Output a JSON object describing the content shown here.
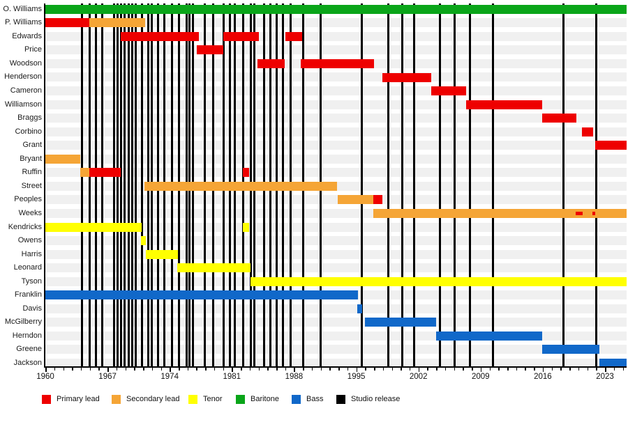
{
  "chart_data": {
    "type": "timeline",
    "description": "Band membership timeline with vocal roles and studio release markers",
    "x_axis": {
      "min": 1960,
      "max": 2025.45,
      "major_ticks": [
        1960,
        1967,
        1974,
        1981,
        1988,
        1995,
        2002,
        2009,
        2016,
        2023
      ],
      "minor_tick_interval": 1,
      "grid": false
    },
    "legend_position": "bottom",
    "legend": [
      {
        "key": "primary_lead",
        "label": "Primary lead",
        "color": "#ee0000"
      },
      {
        "key": "secondary_lead",
        "label": "Secondary lead",
        "color": "#f5a536"
      },
      {
        "key": "tenor",
        "label": "Tenor",
        "color": "#ffff00"
      },
      {
        "key": "baritone",
        "label": "Baritone",
        "color": "#0aa519"
      },
      {
        "key": "bass",
        "label": "Bass",
        "color": "#1068c9"
      },
      {
        "key": "studio_release",
        "label": "Studio release",
        "color": "#000000"
      }
    ],
    "studio_releases": [
      1964.15,
      1964.95,
      1965.7,
      1966.4,
      1967.7,
      1968.1,
      1968.5,
      1968.95,
      1969.35,
      1969.75,
      1970.2,
      1970.9,
      1971.6,
      1972.0,
      1972.7,
      1973.4,
      1974.25,
      1975.05,
      1975.9,
      1976.25,
      1976.6,
      1977.95,
      1978.85,
      1980.1,
      1980.75,
      1981.35,
      1982.3,
      1983.1,
      1983.55,
      1984.6,
      1985.3,
      1986.05,
      1986.75,
      1987.6,
      1989.0,
      1991.0,
      1995.65,
      1998.6,
      2000.2,
      2001.5,
      2004.45,
      2006.1,
      2007.8,
      2010.35,
      2018.35,
      2022.0
    ],
    "members": [
      {
        "name": "O. Williams",
        "segments": [
          {
            "role": "baritone",
            "start": 1960,
            "end": 2025.45
          }
        ]
      },
      {
        "name": "P. Williams",
        "segments": [
          {
            "role": "primary_lead",
            "start": 1960,
            "end": 1964.95
          },
          {
            "role": "secondary_lead",
            "start": 1964.95,
            "end": 1971.25
          }
        ]
      },
      {
        "name": "Edwards",
        "segments": [
          {
            "role": "primary_lead",
            "start": 1968.5,
            "end": 1977.3
          },
          {
            "role": "primary_lead",
            "start": 1980.05,
            "end": 1984.05
          },
          {
            "role": "primary_lead",
            "start": 1987.05,
            "end": 1988.9
          }
        ]
      },
      {
        "name": "Price",
        "segments": [
          {
            "role": "primary_lead",
            "start": 1977.05,
            "end": 1980.05
          }
        ]
      },
      {
        "name": "Woodson",
        "segments": [
          {
            "role": "primary_lead",
            "start": 1983.9,
            "end": 1986.95
          },
          {
            "role": "primary_lead",
            "start": 1988.75,
            "end": 1997.0
          }
        ]
      },
      {
        "name": "Henderson",
        "segments": [
          {
            "role": "primary_lead",
            "start": 1997.95,
            "end": 2003.45
          }
        ]
      },
      {
        "name": "Cameron",
        "segments": [
          {
            "role": "primary_lead",
            "start": 2003.4,
            "end": 2007.4
          }
        ]
      },
      {
        "name": "Williamson",
        "segments": [
          {
            "role": "primary_lead",
            "start": 2007.4,
            "end": 2015.95
          }
        ]
      },
      {
        "name": "Braggs",
        "segments": [
          {
            "role": "primary_lead",
            "start": 2015.95,
            "end": 2019.8
          }
        ]
      },
      {
        "name": "Corbino",
        "segments": [
          {
            "role": "primary_lead",
            "start": 2020.4,
            "end": 2021.7
          }
        ]
      },
      {
        "name": "Grant",
        "segments": [
          {
            "role": "primary_lead",
            "start": 2021.9,
            "end": 2025.45
          }
        ]
      },
      {
        "name": "Bryant",
        "segments": [
          {
            "role": "secondary_lead",
            "start": 1960,
            "end": 1963.95
          }
        ]
      },
      {
        "name": "Ruffin",
        "segments": [
          {
            "role": "secondary_lead",
            "start": 1963.95,
            "end": 1964.95
          },
          {
            "role": "primary_lead",
            "start": 1964.95,
            "end": 1968.5
          },
          {
            "role": "primary_lead",
            "start": 1982.25,
            "end": 1982.95
          }
        ]
      },
      {
        "name": "Street",
        "segments": [
          {
            "role": "secondary_lead",
            "start": 1971.15,
            "end": 1992.85
          }
        ]
      },
      {
        "name": "Peoples",
        "segments": [
          {
            "role": "secondary_lead",
            "start": 1992.9,
            "end": 1996.9
          },
          {
            "role": "primary_lead",
            "start": 1996.9,
            "end": 1997.95
          }
        ]
      },
      {
        "name": "Weeks",
        "segments": [
          {
            "role": "secondary_lead",
            "start": 1996.95,
            "end": 2025.45
          },
          {
            "role": "primary_lead",
            "start": 2019.7,
            "end": 2020.5,
            "thin": true
          },
          {
            "role": "primary_lead",
            "start": 2021.6,
            "end": 2021.9,
            "thin": true
          }
        ]
      },
      {
        "name": "Kendricks",
        "segments": [
          {
            "role": "tenor",
            "start": 1960,
            "end": 1970.85
          },
          {
            "role": "tenor",
            "start": 1982.25,
            "end": 1982.95
          }
        ]
      },
      {
        "name": "Owens",
        "segments": [
          {
            "role": "tenor",
            "start": 1970.75,
            "end": 1971.3
          }
        ]
      },
      {
        "name": "Harris",
        "segments": [
          {
            "role": "tenor",
            "start": 1971.3,
            "end": 1974.95
          }
        ]
      },
      {
        "name": "Leonard",
        "segments": [
          {
            "role": "tenor",
            "start": 1974.85,
            "end": 1983.1
          }
        ]
      },
      {
        "name": "Tyson",
        "segments": [
          {
            "role": "tenor",
            "start": 1983.1,
            "end": 2025.45
          }
        ]
      },
      {
        "name": "Franklin",
        "segments": [
          {
            "role": "bass",
            "start": 1960,
            "end": 1995.2
          }
        ]
      },
      {
        "name": "Davis",
        "segments": [
          {
            "role": "bass",
            "start": 1995.1,
            "end": 1995.7
          }
        ]
      },
      {
        "name": "McGilberry",
        "segments": [
          {
            "role": "bass",
            "start": 1995.95,
            "end": 2004.0
          }
        ]
      },
      {
        "name": "Herndon",
        "segments": [
          {
            "role": "bass",
            "start": 2004.0,
            "end": 2015.95
          }
        ]
      },
      {
        "name": "Greene",
        "segments": [
          {
            "role": "bass",
            "start": 2015.95,
            "end": 2022.4
          }
        ]
      },
      {
        "name": "Jackson",
        "segments": [
          {
            "role": "bass",
            "start": 2022.4,
            "end": 2025.45
          }
        ]
      }
    ]
  }
}
